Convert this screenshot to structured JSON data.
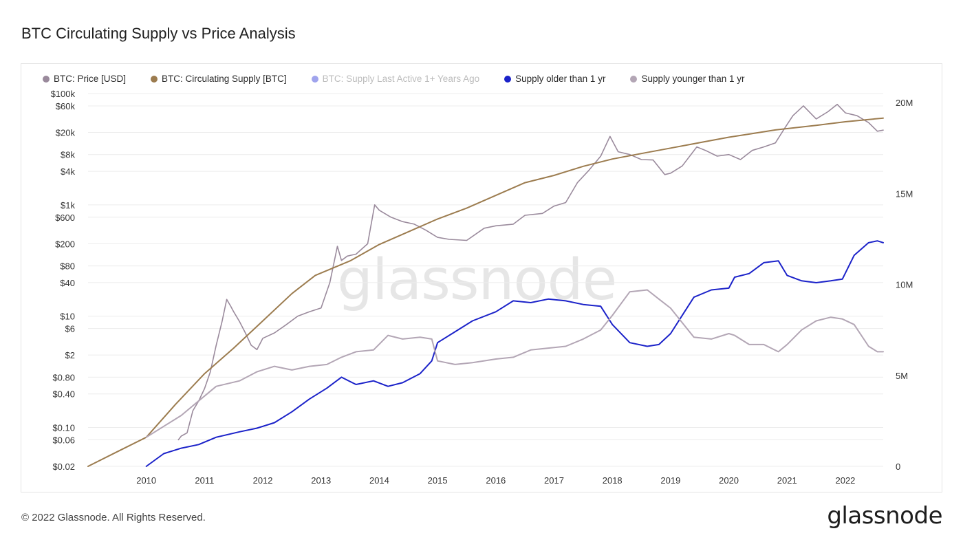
{
  "title": "BTC Circulating Supply vs Price Analysis",
  "watermark": "glassnode",
  "footer": "© 2022 Glassnode. All Rights Reserved.",
  "brand": "glassnode",
  "legend": [
    {
      "label": "BTC: Price [USD]",
      "color": "#9a8a9c",
      "enabled": true
    },
    {
      "label": "BTC: Circulating Supply [BTC]",
      "color": "#9c7c4f",
      "enabled": true
    },
    {
      "label": "BTC: Supply Last Active 1+ Years Ago",
      "color": "#2d35d6",
      "enabled": false
    },
    {
      "label": "Supply older than 1 yr",
      "color": "#1b22c9",
      "enabled": true
    },
    {
      "label": "Supply younger than 1 yr",
      "color": "#b3a6b5",
      "enabled": true
    }
  ],
  "chart_data": {
    "type": "line",
    "x_ticks": [
      "2010",
      "2011",
      "2012",
      "2013",
      "2014",
      "2015",
      "2016",
      "2017",
      "2018",
      "2019",
      "2020",
      "2021",
      "2022"
    ],
    "xlim": [
      2009.0,
      2022.65
    ],
    "y_left": {
      "scale": "log",
      "ticks": [
        "$100k",
        "$60k",
        "$20k",
        "$8k",
        "$4k",
        "$1k",
        "$600",
        "$200",
        "$80",
        "$40",
        "$10",
        "$6",
        "$2",
        "$0.80",
        "$0.40",
        "$0.10",
        "$0.06",
        "$0.02"
      ],
      "tick_values": [
        100000,
        60000,
        20000,
        8000,
        4000,
        1000,
        600,
        200,
        80,
        40,
        10,
        6,
        2,
        0.8,
        0.4,
        0.1,
        0.06,
        0.02
      ],
      "ylim": [
        0.02,
        100000
      ]
    },
    "y_right": {
      "ticks": [
        "20M",
        "15M",
        "10M",
        "5M",
        "0"
      ],
      "tick_values": [
        20000000,
        15000000,
        10000000,
        5000000,
        0
      ],
      "ylim": [
        0,
        20500000
      ]
    },
    "series": [
      {
        "name": "BTC: Price [USD]",
        "axis": "left",
        "color": "#9a8a9c",
        "x": [
          2010.55,
          2010.6,
          2010.7,
          2010.8,
          2010.9,
          2011.0,
          2011.1,
          2011.2,
          2011.3,
          2011.38,
          2011.45,
          2011.5,
          2011.6,
          2011.7,
          2011.8,
          2011.9,
          2012.0,
          2012.2,
          2012.4,
          2012.6,
          2012.8,
          2013.0,
          2013.15,
          2013.28,
          2013.35,
          2013.45,
          2013.6,
          2013.8,
          2013.92,
          2014.0,
          2014.2,
          2014.4,
          2014.6,
          2014.8,
          2015.0,
          2015.2,
          2015.5,
          2015.8,
          2016.0,
          2016.3,
          2016.5,
          2016.8,
          2017.0,
          2017.2,
          2017.4,
          2017.6,
          2017.8,
          2017.96,
          2018.1,
          2018.3,
          2018.5,
          2018.7,
          2018.9,
          2019.0,
          2019.2,
          2019.45,
          2019.6,
          2019.8,
          2020.0,
          2020.2,
          2020.4,
          2020.6,
          2020.8,
          2020.95,
          2021.1,
          2021.28,
          2021.5,
          2021.7,
          2021.86,
          2022.0,
          2022.2,
          2022.4,
          2022.55,
          2022.65
        ],
        "y": [
          0.06,
          0.07,
          0.08,
          0.2,
          0.3,
          0.5,
          1,
          3,
          8,
          20,
          15,
          12,
          8,
          5,
          3,
          2.5,
          4,
          5,
          7,
          10,
          12,
          14,
          40,
          180,
          100,
          120,
          130,
          200,
          1000,
          800,
          600,
          500,
          450,
          350,
          260,
          240,
          230,
          380,
          420,
          450,
          650,
          700,
          950,
          1100,
          2500,
          4200,
          7500,
          17000,
          9000,
          8000,
          6500,
          6400,
          3500,
          3700,
          5000,
          11000,
          9500,
          7500,
          8000,
          6500,
          9500,
          11000,
          13000,
          23000,
          40000,
          60000,
          35000,
          47000,
          64000,
          45000,
          40000,
          30000,
          21000,
          22000
        ]
      },
      {
        "name": "BTC: Circulating Supply [BTC]",
        "axis": "right",
        "color": "#9c7c4f",
        "x": [
          2009.0,
          2009.5,
          2010.0,
          2010.5,
          2011.0,
          2011.5,
          2012.0,
          2012.5,
          2012.9,
          2013.5,
          2014.0,
          2014.5,
          2015.0,
          2015.5,
          2016.0,
          2016.5,
          2017.0,
          2017.5,
          2018.0,
          2018.5,
          2019.0,
          2019.5,
          2020.0,
          2020.4,
          2020.8,
          2021.5,
          2022.0,
          2022.65
        ],
        "y": [
          0,
          800000,
          1600000,
          3400000,
          5100000,
          6500000,
          8000000,
          9500000,
          10500000,
          11300000,
          12200000,
          12900000,
          13600000,
          14200000,
          14900000,
          15600000,
          16000000,
          16500000,
          16900000,
          17200000,
          17500000,
          17800000,
          18100000,
          18300000,
          18500000,
          18750000,
          18950000,
          19150000
        ]
      },
      {
        "name": "Supply older than 1 yr",
        "axis": "right",
        "color": "#1b22c9",
        "x": [
          2010.0,
          2010.3,
          2010.6,
          2010.9,
          2011.2,
          2011.6,
          2011.9,
          2012.2,
          2012.5,
          2012.8,
          2013.1,
          2013.35,
          2013.6,
          2013.9,
          2014.15,
          2014.4,
          2014.7,
          2014.9,
          2015.0,
          2015.3,
          2015.6,
          2016.0,
          2016.3,
          2016.6,
          2016.9,
          2017.2,
          2017.5,
          2017.8,
          2018.0,
          2018.3,
          2018.6,
          2018.8,
          2019.0,
          2019.2,
          2019.4,
          2019.7,
          2020.0,
          2020.1,
          2020.35,
          2020.6,
          2020.85,
          2021.0,
          2021.25,
          2021.5,
          2021.75,
          2021.95,
          2022.15,
          2022.4,
          2022.55,
          2022.65
        ],
        "y": [
          0,
          700000,
          1000000,
          1200000,
          1600000,
          1900000,
          2100000,
          2400000,
          3000000,
          3700000,
          4300000,
          4900000,
          4500000,
          4700000,
          4400000,
          4600000,
          5100000,
          5800000,
          6800000,
          7400000,
          8000000,
          8500000,
          9100000,
          9000000,
          9200000,
          9100000,
          8900000,
          8800000,
          7800000,
          6800000,
          6600000,
          6700000,
          7300000,
          8300000,
          9300000,
          9700000,
          9800000,
          10400000,
          10600000,
          11200000,
          11300000,
          10500000,
          10200000,
          10100000,
          10200000,
          10300000,
          11600000,
          12300000,
          12400000,
          12300000
        ]
      },
      {
        "name": "Supply younger than 1 yr",
        "axis": "right",
        "color": "#b3a6b5",
        "x": [
          2010.0,
          2010.3,
          2010.6,
          2010.9,
          2011.2,
          2011.6,
          2011.9,
          2012.2,
          2012.5,
          2012.8,
          2013.1,
          2013.35,
          2013.6,
          2013.9,
          2014.15,
          2014.4,
          2014.7,
          2014.9,
          2015.0,
          2015.3,
          2015.6,
          2016.0,
          2016.3,
          2016.6,
          2016.9,
          2017.2,
          2017.5,
          2017.8,
          2018.0,
          2018.3,
          2018.6,
          2018.8,
          2019.0,
          2019.2,
          2019.4,
          2019.7,
          2020.0,
          2020.1,
          2020.35,
          2020.6,
          2020.85,
          2021.0,
          2021.25,
          2021.5,
          2021.75,
          2021.95,
          2022.15,
          2022.4,
          2022.55,
          2022.65
        ],
        "y": [
          1600000,
          2200000,
          2800000,
          3600000,
          4400000,
          4700000,
          5200000,
          5500000,
          5300000,
          5500000,
          5600000,
          6000000,
          6300000,
          6400000,
          7200000,
          7000000,
          7100000,
          7000000,
          5800000,
          5600000,
          5700000,
          5900000,
          6000000,
          6400000,
          6500000,
          6600000,
          7000000,
          7500000,
          8300000,
          9600000,
          9700000,
          9200000,
          8700000,
          7900000,
          7100000,
          7000000,
          7300000,
          7200000,
          6700000,
          6700000,
          6300000,
          6700000,
          7500000,
          8000000,
          8200000,
          8100000,
          7800000,
          6600000,
          6300000,
          6300000
        ]
      }
    ]
  }
}
